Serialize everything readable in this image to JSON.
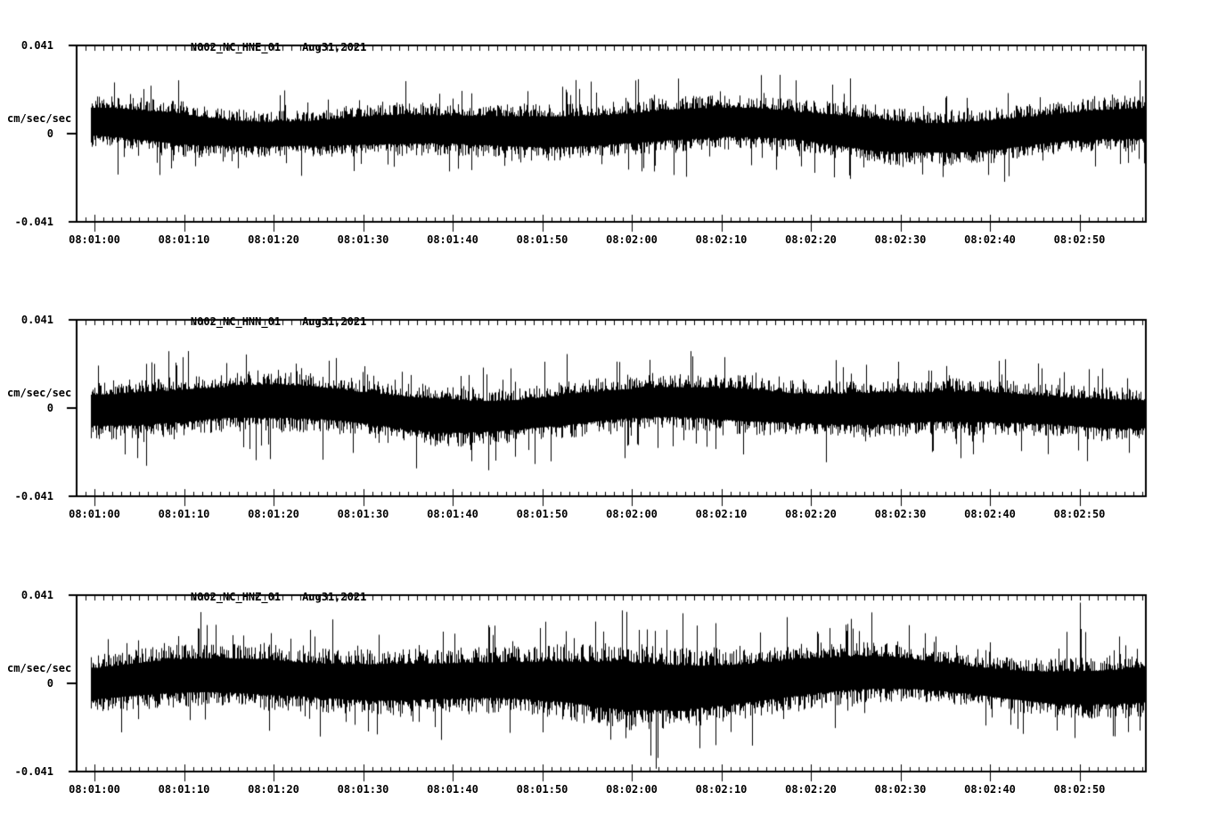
{
  "page": {
    "background": "#ffffff",
    "trace_color": "#000000",
    "station": "N002",
    "network": "NC",
    "date": "Aug31,2021"
  },
  "chart_data": [
    {
      "type": "line",
      "subtype": "seismogram-minmax-noise-trace",
      "station": "N002_NC_HNE_01",
      "date": "Aug31,2021",
      "ylabel": "cm/sec/sec",
      "ylim": [
        -0.041,
        0.041
      ],
      "y_top_label": "0.041",
      "y_zero_label": "0",
      "y_bottom_label": "-0.041",
      "grid": false,
      "legend": false,
      "x_major_interval_sec": 10,
      "x_minor_interval_sec": 1,
      "x_tick_labels": [
        "08:01:00",
        "08:01:10",
        "08:01:20",
        "08:01:30",
        "08:01:40",
        "08:01:50",
        "08:02:00",
        "08:02:10",
        "08:02:20",
        "08:02:30",
        "08:02:40",
        "08:02:50"
      ],
      "envelope_t_sec": [
        0,
        5,
        10,
        15,
        20,
        25,
        30,
        35,
        40,
        45,
        50,
        55,
        60,
        65,
        70,
        75,
        80,
        85,
        90,
        95,
        100,
        105,
        110,
        115,
        120
      ],
      "envelope_amp_cm_s2": [
        0.018,
        0.019,
        0.02,
        0.017,
        0.016,
        0.016,
        0.018,
        0.019,
        0.018,
        0.019,
        0.02,
        0.02,
        0.019,
        0.02,
        0.019,
        0.019,
        0.018,
        0.02,
        0.021,
        0.019,
        0.02,
        0.019,
        0.018,
        0.019,
        0.02
      ],
      "dc_offset_cm_s2": 0.002,
      "noise_seed": 101
    },
    {
      "type": "line",
      "subtype": "seismogram-minmax-noise-trace",
      "station": "N002_NC_HNN_01",
      "date": "Aug31,2021",
      "ylabel": "cm/sec/sec",
      "ylim": [
        -0.041,
        0.041
      ],
      "y_top_label": "0.041",
      "y_zero_label": "0",
      "y_bottom_label": "-0.041",
      "grid": false,
      "legend": false,
      "x_major_interval_sec": 10,
      "x_minor_interval_sec": 1,
      "x_tick_labels": [
        "08:01:00",
        "08:01:10",
        "08:01:20",
        "08:01:30",
        "08:01:40",
        "08:01:50",
        "08:02:00",
        "08:02:10",
        "08:02:20",
        "08:02:30",
        "08:02:40",
        "08:02:50"
      ],
      "envelope_t_sec": [
        0,
        5,
        10,
        15,
        20,
        25,
        30,
        35,
        40,
        45,
        50,
        55,
        60,
        65,
        70,
        75,
        80,
        85,
        90,
        95,
        100,
        105,
        110,
        115,
        120
      ],
      "envelope_amp_cm_s2": [
        0.02,
        0.021,
        0.021,
        0.02,
        0.022,
        0.021,
        0.02,
        0.021,
        0.022,
        0.02,
        0.019,
        0.02,
        0.019,
        0.019,
        0.02,
        0.021,
        0.019,
        0.02,
        0.021,
        0.019,
        0.02,
        0.019,
        0.018,
        0.019,
        0.018
      ],
      "dc_offset_cm_s2": 0.0,
      "noise_seed": 202
    },
    {
      "type": "line",
      "subtype": "seismogram-minmax-noise-trace",
      "station": "N002_NC_HNZ_01",
      "date": "Aug31,2021",
      "ylabel": "cm/sec/sec",
      "ylim": [
        -0.041,
        0.041
      ],
      "y_top_label": "0.041",
      "y_zero_label": "0",
      "y_bottom_label": "-0.041",
      "grid": false,
      "legend": false,
      "x_major_interval_sec": 10,
      "x_minor_interval_sec": 1,
      "x_tick_labels": [
        "08:01:00",
        "08:01:10",
        "08:01:20",
        "08:01:30",
        "08:01:40",
        "08:01:50",
        "08:02:00",
        "08:02:10",
        "08:02:20",
        "08:02:30",
        "08:02:40",
        "08:02:50"
      ],
      "envelope_t_sec": [
        0,
        5,
        10,
        15,
        20,
        25,
        30,
        35,
        40,
        45,
        50,
        55,
        60,
        65,
        70,
        75,
        80,
        85,
        90,
        95,
        100,
        105,
        110,
        115,
        120
      ],
      "envelope_amp_cm_s2": [
        0.02,
        0.021,
        0.022,
        0.022,
        0.023,
        0.022,
        0.023,
        0.024,
        0.023,
        0.023,
        0.024,
        0.027,
        0.031,
        0.03,
        0.027,
        0.025,
        0.024,
        0.022,
        0.021,
        0.019,
        0.018,
        0.019,
        0.021,
        0.022,
        0.023
      ],
      "dc_offset_cm_s2": 0.001,
      "noise_seed": 303
    }
  ]
}
